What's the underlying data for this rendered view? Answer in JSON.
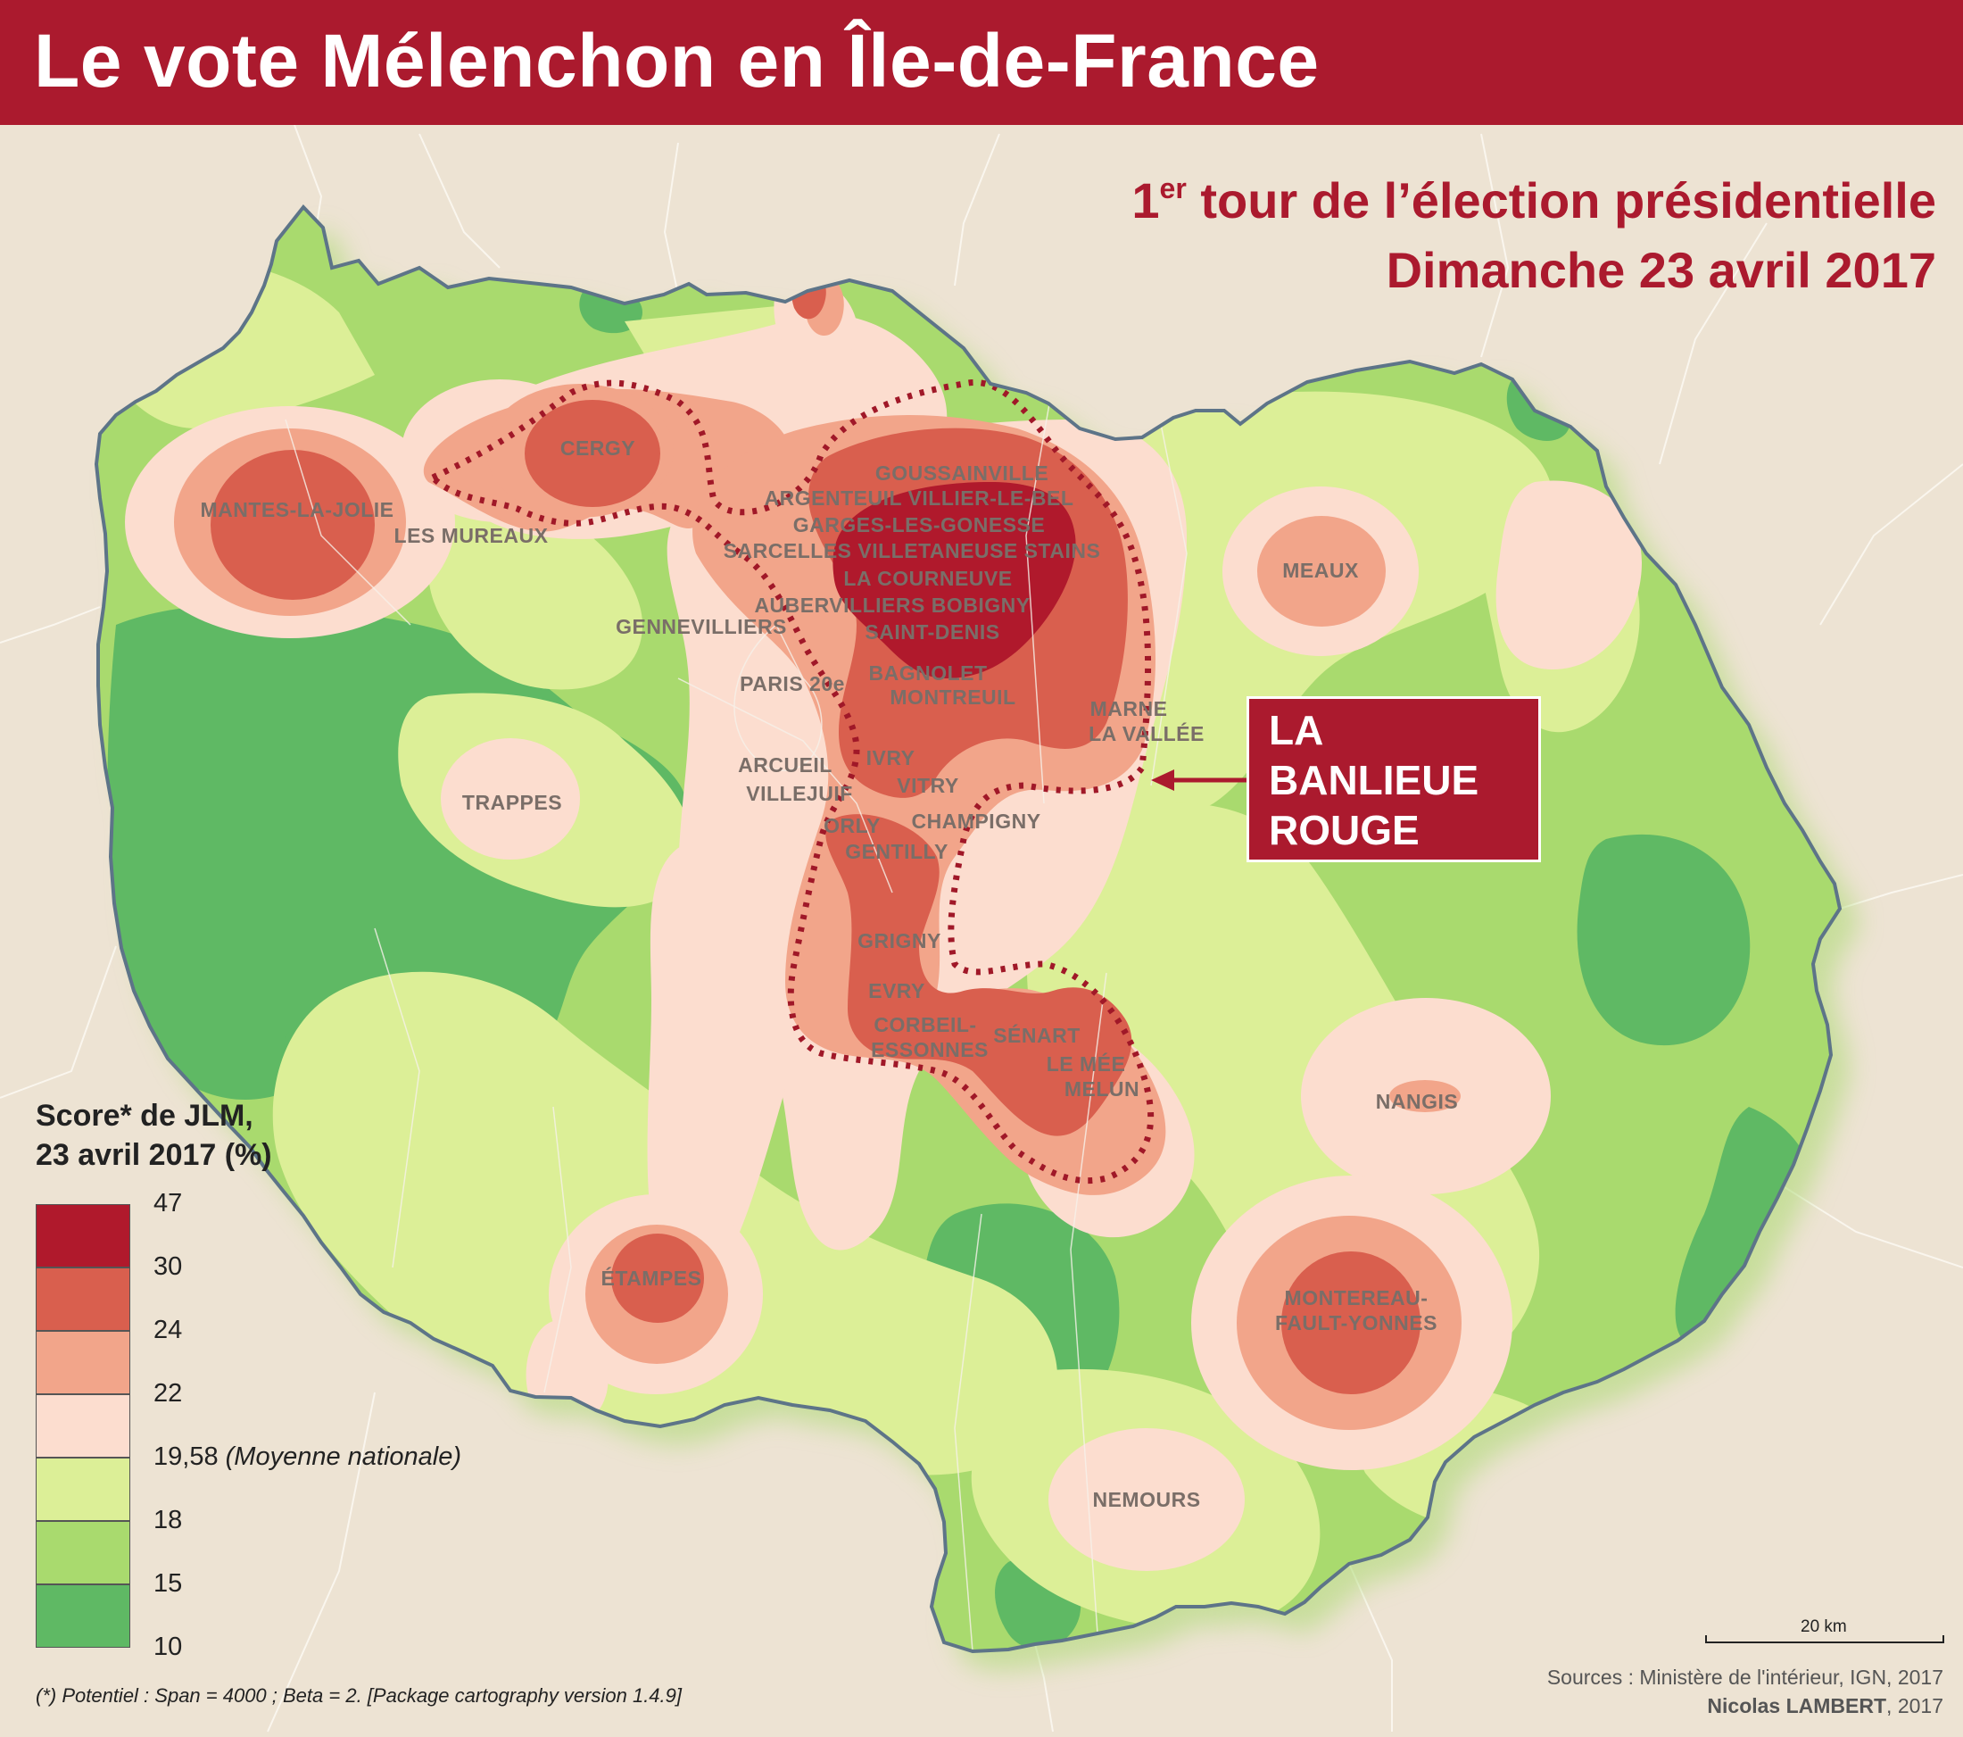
{
  "title": "Le vote Mélenchon en Île-de-France",
  "subtitle": {
    "line1_prefix": "1",
    "line1_sup": "er",
    "line1_rest": " tour de l’élection présidentielle",
    "line2": "Dimanche 23 avril 2017"
  },
  "callout": {
    "lines": [
      "LA",
      "BANLIEUE",
      "ROUGE"
    ]
  },
  "places": [
    "CERGY",
    "MANTES-LA-JOLIE",
    "LES MUREAUX",
    "GOUSSAINVILLE",
    "ARGENTEUIL VILLIER-LE-BEL",
    "GARGES-LES-GONESSE",
    "SARCELLES VILLETANEUSE STAINS",
    "LA COURNEUVE",
    "AUBERVILLIERS BOBIGNY",
    "SAINT-DENIS",
    "GENNEVILLIERS",
    "PARIS 20e",
    "BAGNOLET",
    "MONTREUIL",
    "MARNE",
    "LA VALLÉE",
    "MEAUX",
    "TRAPPES",
    "ARCUEIL",
    "VILLEJUIF",
    "IVRY",
    "VITRY",
    "ORLY",
    "CHAMPIGNY",
    "GENTILLY",
    "GRIGNY",
    "EVRY",
    "CORBEIL-",
    "ESSONNES",
    "SÉNART",
    "LE MÉE",
    "MELUN",
    "NANGIS",
    "ÉTAMPES",
    "MONTEREAU-",
    "FAULT-YONNES",
    "NEMOURS"
  ],
  "legend": {
    "title_line1": "Score* de JLM,",
    "title_line2": "23 avril 2017 (%)",
    "classes": [
      {
        "color": "#b0192c",
        "from": 30,
        "to": 47
      },
      {
        "color": "#d95f4e",
        "from": 24,
        "to": 30
      },
      {
        "color": "#f2a58a",
        "from": 22,
        "to": 24
      },
      {
        "color": "#fcddcf",
        "from": 19.58,
        "to": 22
      },
      {
        "color": "#dcef97",
        "from": 18,
        "to": 19.58
      },
      {
        "color": "#a9da6e",
        "from": 15,
        "to": 18
      },
      {
        "color": "#5fb964",
        "from": 10,
        "to": 15
      }
    ],
    "labels": [
      "47",
      "30",
      "24",
      "22",
      "19,58",
      "18",
      "15",
      "10"
    ],
    "national_average_note": "(Moyenne nationale)"
  },
  "footnote": "(*) Potentiel : Span = 4000 ; Beta = 2.  [Package cartography version 1.4.9]",
  "sources": {
    "line1": "Sources : Ministère de l'intérieur, IGN, 2017",
    "author_name": "Nicolas LAMBERT",
    "author_year": ", 2017"
  },
  "scale": {
    "label": "20 km"
  },
  "colors": {
    "accent": "#ab1a2e",
    "background": "#ede3d3",
    "border": "#5d7488"
  }
}
